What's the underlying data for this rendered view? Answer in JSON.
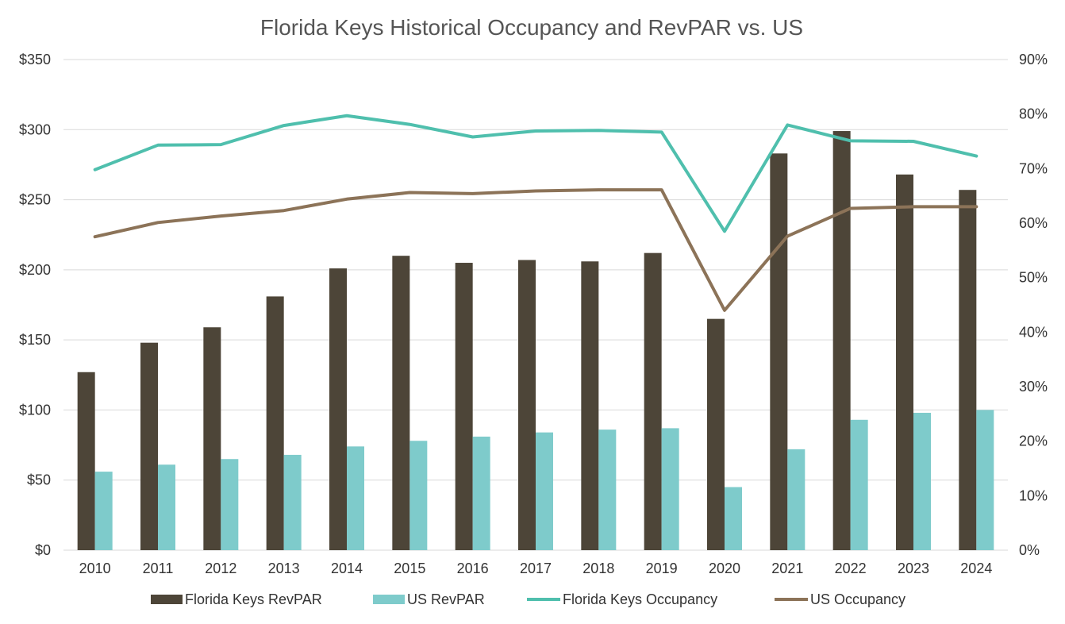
{
  "chart_data": {
    "type": "bar",
    "title": "Florida Keys Historical Occupancy and RevPAR vs. US",
    "categories": [
      "2010",
      "2011",
      "2012",
      "2013",
      "2014",
      "2015",
      "2016",
      "2017",
      "2018",
      "2019",
      "2020",
      "2021",
      "2022",
      "2023",
      "2024"
    ],
    "left_axis": {
      "ylim": [
        0,
        350
      ],
      "ticks": [
        0,
        50,
        100,
        150,
        200,
        250,
        300,
        350
      ],
      "tick_labels": [
        "$0",
        "$50",
        "$100",
        "$150",
        "$200",
        "$250",
        "$300",
        "$350"
      ]
    },
    "right_axis": {
      "ylim": [
        0,
        90
      ],
      "ticks": [
        0,
        10,
        20,
        30,
        40,
        50,
        60,
        70,
        80,
        90
      ],
      "tick_labels": [
        "0%",
        "10%",
        "20%",
        "30%",
        "40%",
        "50%",
        "60%",
        "70%",
        "80%",
        "90%"
      ]
    },
    "grid": true,
    "legend_position": "bottom",
    "series": [
      {
        "name": "Florida Keys RevPAR",
        "type": "bar",
        "axis": "left",
        "color": "#4d4538",
        "values": [
          127,
          148,
          159,
          181,
          201,
          210,
          205,
          207,
          206,
          212,
          165,
          283,
          299,
          268,
          257
        ]
      },
      {
        "name": "US RevPAR",
        "type": "bar",
        "axis": "left",
        "color": "#7ecbcb",
        "values": [
          56,
          61,
          65,
          68,
          74,
          78,
          81,
          84,
          86,
          87,
          45,
          72,
          93,
          98,
          100
        ]
      },
      {
        "name": "Florida Keys Occupancy",
        "type": "line",
        "axis": "right",
        "color": "#4fbfad",
        "values": [
          69.8,
          74.3,
          74.4,
          77.9,
          79.7,
          78.1,
          75.8,
          76.9,
          77.0,
          76.7,
          58.5,
          78.0,
          75.1,
          75.0,
          72.3
        ]
      },
      {
        "name": "US Occupancy",
        "type": "line",
        "axis": "right",
        "color": "#8c7358",
        "values": [
          57.5,
          60.1,
          61.3,
          62.3,
          64.4,
          65.6,
          65.4,
          65.9,
          66.1,
          66.1,
          44.0,
          57.6,
          62.7,
          63.0,
          63.0
        ]
      }
    ]
  }
}
